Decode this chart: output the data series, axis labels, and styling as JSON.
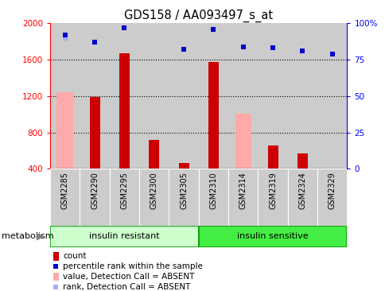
{
  "title": "GDS158 / AA093497_s_at",
  "samples": [
    "GSM2285",
    "GSM2290",
    "GSM2295",
    "GSM2300",
    "GSM2305",
    "GSM2310",
    "GSM2314",
    "GSM2319",
    "GSM2324",
    "GSM2329"
  ],
  "groups": [
    "insulin resistant",
    "insulin sensitive"
  ],
  "ylim_left": [
    400,
    2000
  ],
  "ylim_right": [
    0,
    100
  ],
  "yticks_left": [
    400,
    800,
    1200,
    1600,
    2000
  ],
  "yticks_right": [
    0,
    25,
    50,
    75,
    100
  ],
  "count_values": [
    null,
    1190,
    1670,
    720,
    460,
    1570,
    null,
    660,
    570,
    null
  ],
  "value_absent": [
    1240,
    null,
    null,
    null,
    null,
    null,
    1010,
    null,
    null,
    400
  ],
  "percentile_rank": [
    92,
    87,
    97,
    null,
    82,
    96,
    84,
    83,
    81,
    79
  ],
  "rank_absent_pct": [
    90,
    null,
    null,
    null,
    null,
    null,
    84,
    null,
    null,
    79
  ],
  "bar_bottom": 400,
  "count_color": "#cc0000",
  "value_absent_color": "#ffaaaa",
  "rank_color": "#0000cc",
  "rank_absent_color": "#aaaaff",
  "group1_color": "#ccffcc",
  "group2_color": "#44ee44",
  "group_border": "#009900",
  "sample_bg": "#cccccc",
  "legend_items": [
    {
      "label": "count",
      "color": "#cc0000",
      "type": "bar"
    },
    {
      "label": "percentile rank within the sample",
      "color": "#0000cc",
      "type": "scatter"
    },
    {
      "label": "value, Detection Call = ABSENT",
      "color": "#ffaaaa",
      "type": "bar"
    },
    {
      "label": "rank, Detection Call = ABSENT",
      "color": "#aaaaff",
      "type": "scatter"
    }
  ]
}
